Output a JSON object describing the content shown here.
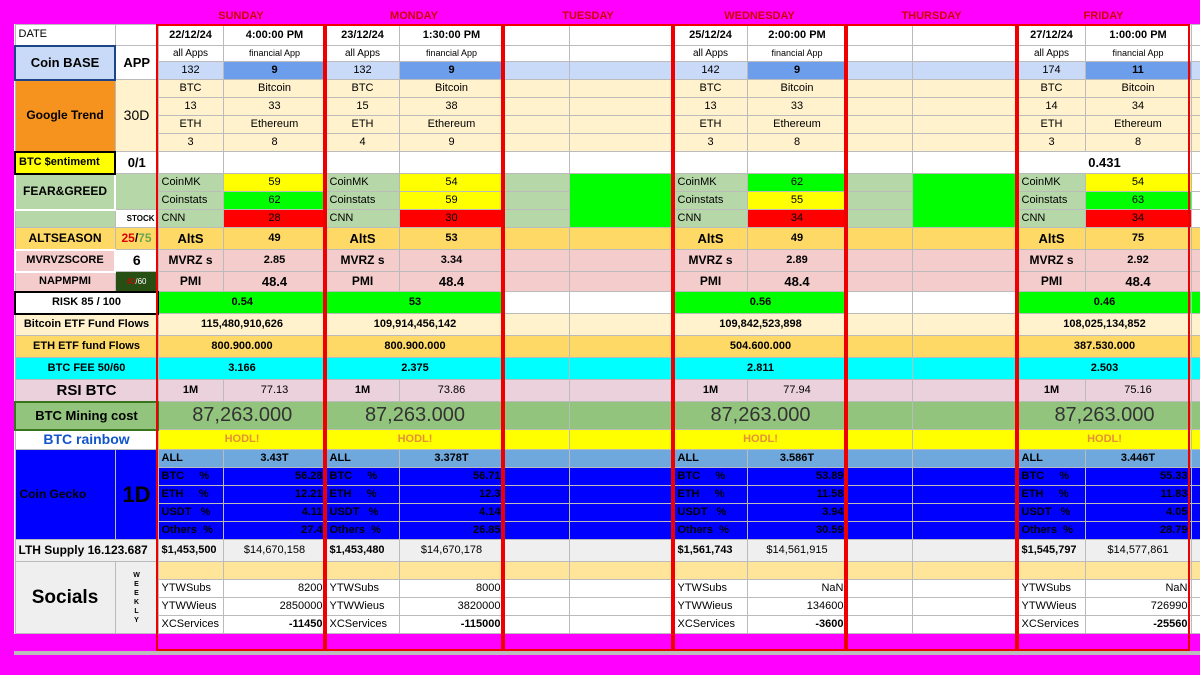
{
  "days": [
    "SUNDAY",
    "MONDAY",
    "TUESDAY",
    "WEDNESDAY",
    "THURSDAY",
    "FRIDAY"
  ],
  "labels": {
    "date": "DATE",
    "coinbase": "Coin BASE",
    "app": "APP",
    "gtrend": "Google Trend",
    "gtrend_period": "30D",
    "sentiment": "BTC $entimemt",
    "sentiment_range": "0/1",
    "feargreed": "FEAR&GREED",
    "stock": "STOCK",
    "altseason": "ALTSEASON",
    "altseason_a": "25",
    "altseason_sep": "/",
    "altseason_b": "75",
    "mvrv": "MVRVZSCORE",
    "mvrv_val": "6",
    "napm": "NAPMPMI",
    "napm_a": "40",
    "napm_b": "60",
    "risk": "RISK  85 / 100",
    "btc_etf": "Bitcoin ETF Fund Flows",
    "eth_etf": "ETH ETF fund Flows",
    "btc_fee": "BTC FEE  50/60",
    "rsi": "RSI BTC",
    "mining": "BTC Mining  cost",
    "rainbow": "BTC rainbow",
    "coingecko": "Coin Gecko",
    "coingecko_period": "1D",
    "lth": "LTH Supply 16.123.687",
    "socials": "Socials",
    "weekly": [
      "W",
      "E",
      "E",
      "K",
      "L",
      "Y"
    ],
    "all_apps": "all Apps",
    "financial_app": "financial App",
    "btc": "BTC",
    "bitcoin": "Bitcoin",
    "eth": "ETH",
    "ethereum": "Ethereum",
    "coinmk": "CoinMK",
    "coinstats": "Coinstats",
    "cnn": "CNN",
    "alts": "AltS",
    "mvrz": "MVRZ s",
    "pmi": "PMI",
    "m1": "1M",
    "all": "ALL",
    "pct": "%",
    "usdt": "USDT",
    "others": "Others",
    "ytwsubs": "YTWSubs",
    "ytwviews": "YTWWieus",
    "xcservices": "XCServices"
  },
  "columns": [
    {
      "date": "22/12/24",
      "time": "4:00:00 PM",
      "all_apps": "132",
      "fin_app": "9",
      "gt_btc": "13",
      "gt_bitcoin": "33",
      "gt_eth": "3",
      "gt_ethereum": "8",
      "sentiment": "",
      "coinmk": "59",
      "coinstats": "62",
      "cnn": "28",
      "alts": "49",
      "mvrz": "2.85",
      "pmi": "48.4",
      "risk": "0.54",
      "btc_etf": "115,480,910,626",
      "eth_etf": "800.900.000",
      "fee": "3.166",
      "rsi": "77.13",
      "mining": "87,263.000",
      "hodl": "HODL!",
      "cg_all": "3.43T",
      "cg_btc": "56.28",
      "cg_eth": "12.21",
      "cg_usdt": "4.11",
      "cg_others": "27.4",
      "lth_a": "$1,453,500",
      "lth_b": "$14,670,158",
      "ytwsubs": "8200",
      "ytwviews": "2850000",
      "xc": "-11450"
    },
    {
      "date": "23/12/24",
      "time": "1:30:00 PM",
      "all_apps": "132",
      "fin_app": "9",
      "gt_btc": "15",
      "gt_bitcoin": "38",
      "gt_eth": "4",
      "gt_ethereum": "9",
      "sentiment": "",
      "coinmk": "54",
      "coinstats": "59",
      "cnn": "30",
      "alts": "53",
      "mvrz": "3.34",
      "pmi": "48.4",
      "risk": "53",
      "btc_etf": "109,914,456,142",
      "eth_etf": "800.900.000",
      "fee": "2.375",
      "rsi": "73.86",
      "mining": "87,263.000",
      "hodl": "HODL!",
      "cg_all": "3.378T",
      "cg_btc": "56.71",
      "cg_eth": "12.3",
      "cg_usdt": "4.14",
      "cg_others": "26.85",
      "lth_a": "$1,453,480",
      "lth_b": "$14,670,178",
      "ytwsubs": "8000",
      "ytwviews": "3820000",
      "xc": "-115000"
    },
    {
      "date": "25/12/24",
      "time": "2:00:00 PM",
      "all_apps": "142",
      "fin_app": "9",
      "gt_btc": "13",
      "gt_bitcoin": "33",
      "gt_eth": "3",
      "gt_ethereum": "8",
      "sentiment": "",
      "coinmk": "62",
      "coinstats": "55",
      "cnn": "34",
      "alts": "49",
      "mvrz": "2.89",
      "pmi": "48.4",
      "risk": "0.56",
      "btc_etf": "109,842,523,898",
      "eth_etf": "504.600.000",
      "fee": "2.811",
      "rsi": "77.94",
      "mining": "87,263.000",
      "hodl": "HODL!",
      "cg_all": "3.586T",
      "cg_btc": "53.89",
      "cg_eth": "11.58",
      "cg_usdt": "3.94",
      "cg_others": "30.59",
      "lth_a": "$1,561,743",
      "lth_b": "$14,561,915",
      "ytwsubs": "NaN",
      "ytwviews": "134600",
      "xc": "-3600"
    },
    {
      "date": "27/12/24",
      "time": "1:00:00 PM",
      "all_apps": "174",
      "fin_app": "11",
      "gt_btc": "14",
      "gt_bitcoin": "34",
      "gt_eth": "3",
      "gt_ethereum": "8",
      "sentiment": "0.431",
      "coinmk": "54",
      "coinstats": "63",
      "cnn": "34",
      "alts": "75",
      "mvrz": "2.92",
      "pmi": "48.4",
      "risk": "0.46",
      "btc_etf": "108,025,134,852",
      "eth_etf": "387.530.000",
      "fee": "2.503",
      "rsi": "75.16",
      "mining": "87,263.000",
      "hodl": "HODL!",
      "cg_all": "3.446T",
      "cg_btc": "55.33",
      "cg_eth": "11.83",
      "cg_usdt": "4.05",
      "cg_others": "28.79",
      "lth_a": "$1,545,797",
      "lth_b": "$14,577,861",
      "ytwsubs": "NaN",
      "ytwviews": "726990",
      "xc": "-25560"
    }
  ],
  "colors": {
    "background": "#ff00ff",
    "frame": "#e00000",
    "fear_high": "#00ff00",
    "fear_mid": "#ffff00",
    "fear_low": "#ff0000",
    "coingecko": "#0000ff"
  }
}
